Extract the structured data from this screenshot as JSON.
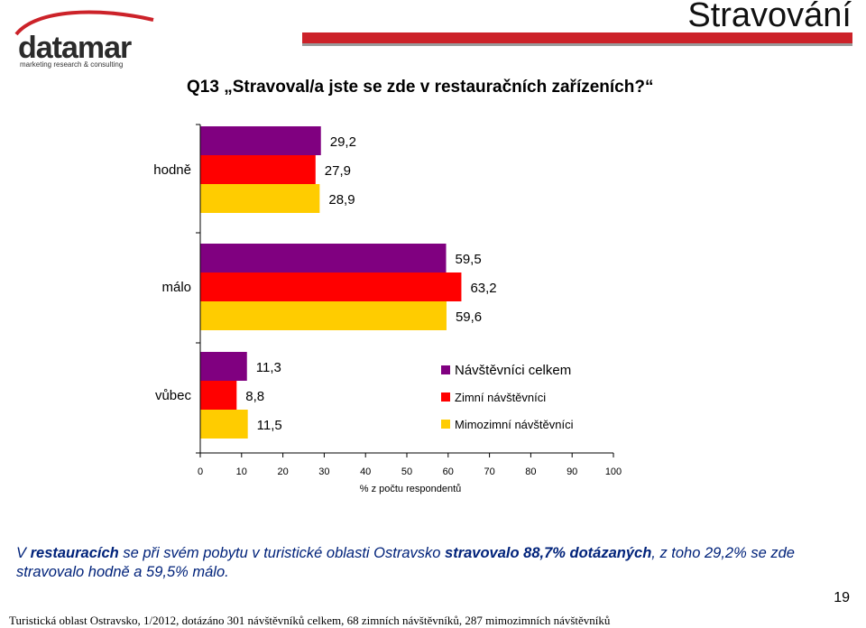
{
  "header": {
    "logo_word": "datamar",
    "logo_tagline": "marketing research & consulting",
    "page_title": "Stravování"
  },
  "question": "Q13 „Stravoval/a jste se zde v restauračních zařízeních?“",
  "chart_data": {
    "type": "bar",
    "orientation": "horizontal",
    "categories": [
      "hodně",
      "málo",
      "vůbec"
    ],
    "series": [
      {
        "name": "Návštěvníci celkem",
        "color": "#800080",
        "values": [
          29.2,
          59.5,
          11.3
        ],
        "labels": [
          "29,2",
          "59,5",
          "11,3"
        ]
      },
      {
        "name": "Zimní návštěvníci",
        "color": "#ff0000",
        "values": [
          27.9,
          63.2,
          8.8
        ],
        "labels": [
          "27,9",
          "63,2",
          "8,8"
        ]
      },
      {
        "name": "Mimozimní návštěvníci",
        "color": "#ffcc00",
        "values": [
          28.9,
          59.6,
          11.5
        ],
        "labels": [
          "28,9",
          "59,6",
          "11,5"
        ]
      }
    ],
    "x_ticks": [
      0,
      10,
      20,
      30,
      40,
      50,
      60,
      70,
      80,
      90,
      100
    ],
    "xlim": [
      0,
      100
    ],
    "xlabel": "% z počtu respondentů",
    "grid": false,
    "legend_position": "right-middle"
  },
  "summary": {
    "p1": "V ",
    "b1": "restauracích",
    "p2": " se při svém pobytu v turistické oblasti Ostravsko ",
    "b2": "stravovalo 88,7% dotázaných",
    "p3": ", z toho 29,2% se zde stravovalo hodně a 59,5% málo."
  },
  "page_number": "19",
  "footer": "Turistická oblast Ostravsko, 1/2012, dotázáno 301 návštěvníků celkem, 68 zimních návštěvníků, 287 mimozimních návštěvníků"
}
